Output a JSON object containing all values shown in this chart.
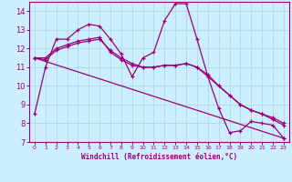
{
  "xlabel": "Windchill (Refroidissement éolien,°C)",
  "bg_color": "#cceeff",
  "line_color": "#990077",
  "grid_color": "#aadddd",
  "xlim": [
    -0.5,
    23.5
  ],
  "ylim": [
    7,
    14.5
  ],
  "yticks": [
    7,
    8,
    9,
    10,
    11,
    12,
    13,
    14
  ],
  "xticks": [
    0,
    1,
    2,
    3,
    4,
    5,
    6,
    7,
    8,
    9,
    10,
    11,
    12,
    13,
    14,
    15,
    16,
    17,
    18,
    19,
    20,
    21,
    22,
    23
  ],
  "series1_x": [
    0,
    1,
    2,
    3,
    4,
    5,
    6,
    7,
    8,
    9,
    10,
    11,
    12,
    13,
    14,
    15,
    16,
    17,
    18,
    19,
    20,
    21,
    22,
    23
  ],
  "series1_y": [
    8.5,
    11.0,
    12.5,
    12.5,
    13.0,
    13.3,
    13.2,
    12.5,
    11.7,
    10.5,
    11.5,
    11.8,
    13.5,
    14.4,
    14.4,
    12.5,
    10.5,
    8.8,
    7.5,
    7.6,
    8.1,
    8.0,
    7.9,
    7.2
  ],
  "series2_x": [
    0,
    1,
    2,
    3,
    4,
    5,
    6,
    7,
    8,
    9,
    10,
    11,
    12,
    13,
    14,
    15,
    16,
    17,
    18,
    19,
    20,
    21,
    22,
    23
  ],
  "series2_y": [
    11.5,
    11.5,
    12.0,
    12.2,
    12.4,
    12.5,
    12.6,
    11.8,
    11.4,
    11.1,
    11.0,
    11.0,
    11.1,
    11.1,
    11.2,
    11.0,
    10.5,
    10.0,
    9.5,
    9.0,
    8.7,
    8.5,
    8.3,
    8.0
  ],
  "series3_x": [
    0,
    1,
    2,
    3,
    4,
    5,
    6,
    7,
    8,
    9,
    10,
    11,
    12,
    13,
    14,
    15,
    16,
    17,
    18,
    19,
    20,
    21,
    22,
    23
  ],
  "series3_y": [
    11.5,
    11.4,
    11.9,
    12.1,
    12.3,
    12.4,
    12.5,
    11.9,
    11.5,
    11.2,
    11.0,
    11.0,
    11.1,
    11.1,
    11.2,
    11.0,
    10.6,
    10.0,
    9.5,
    9.0,
    8.7,
    8.5,
    8.2,
    7.9
  ],
  "series4_x": [
    0,
    23
  ],
  "series4_y": [
    11.5,
    7.2
  ]
}
